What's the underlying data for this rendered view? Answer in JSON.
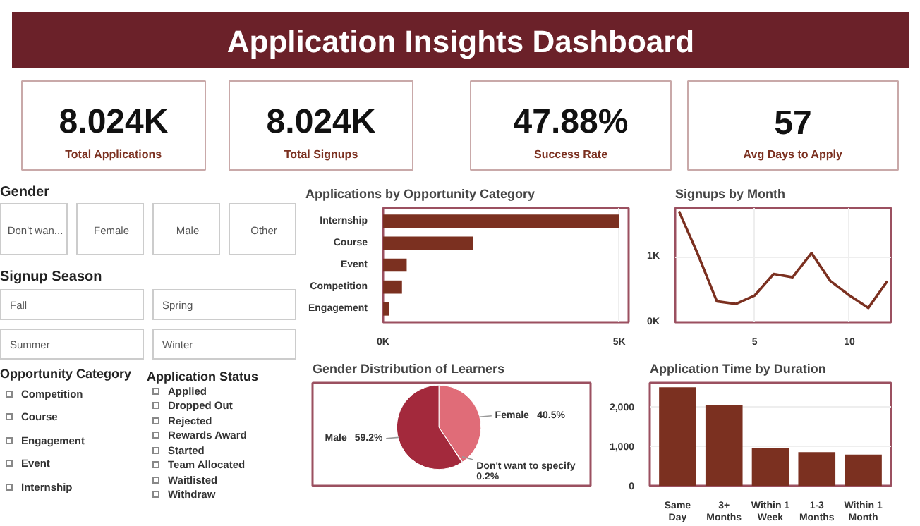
{
  "chart_data": [
    {
      "type": "other",
      "title": "Application Insights Dashboard",
      "annotations": [
        "8.024K",
        "Total Applications",
        "8.024K",
        "Total Signups",
        "47.88%",
        "Success Rate",
        "57",
        "Avg Days to Apply"
      ]
    },
    {
      "type": "other",
      "title": "Gender",
      "annotations": [
        "Don't wan...",
        "Female",
        "Male",
        "Other"
      ]
    },
    {
      "type": "other",
      "title": "Signup Season",
      "annotations": [
        "Fall",
        "Spring",
        "Summer",
        "Winter"
      ]
    },
    {
      "type": "other",
      "title": "Opportunity Category",
      "annotations": [
        "Competition",
        "Course",
        "Engagement",
        "Event",
        "Internship"
      ]
    },
    {
      "type": "other",
      "title": "Application Status",
      "annotations": [
        "Applied",
        "Dropped Out",
        "Rejected",
        "Rewards Award",
        "Started",
        "Team Allocated",
        "Waitlisted",
        "Withdraw"
      ]
    },
    {
      "type": "bar",
      "orientation": "horizontal",
      "title": "Applications by Opportunity Category",
      "categories": [
        "Internship",
        "Course",
        "Event",
        "Competition",
        "Engagement"
      ],
      "values": [
        5000,
        1900,
        500,
        400,
        130
      ],
      "color": "#7b3020",
      "xlim": [
        0,
        5200
      ],
      "xticks": [
        {
          "value": 0,
          "label": "0K"
        },
        {
          "value": 5000,
          "label": "5K"
        }
      ],
      "grid": "x"
    },
    {
      "type": "line",
      "title": "Signups by Month",
      "x": [
        1,
        2,
        3,
        4,
        5,
        6,
        7,
        8,
        9,
        10,
        11,
        12
      ],
      "values": [
        1700,
        1040,
        320,
        280,
        410,
        740,
        690,
        1060,
        630,
        410,
        220,
        630
      ],
      "color": "#7b3020",
      "xlim": [
        0.8,
        12.2
      ],
      "ylim": [
        0,
        1750
      ],
      "xticks": [
        5,
        10
      ],
      "yticks": [
        {
          "value": 0,
          "label": "0K"
        },
        {
          "value": 1000,
          "label": "1K"
        }
      ],
      "grid": true
    },
    {
      "type": "pie",
      "title": "Gender Distribution of Learners",
      "categories": [
        "Female",
        "Don't want to specify",
        "Male"
      ],
      "values": [
        40.5,
        0.2,
        59.2
      ],
      "value_labels": [
        "40.5%",
        "0.2%",
        "59.2%"
      ],
      "colors": [
        "#e06c78",
        "#7a1e2c",
        "#a3293c"
      ]
    },
    {
      "type": "bar",
      "title": "Application Time by Duration",
      "categories": [
        "Same Day",
        "3+ Months",
        "Within 1 Week",
        "1-3 Months",
        "Within 1 Month"
      ],
      "values": [
        2490,
        2030,
        950,
        850,
        790
      ],
      "color": "#7b3020",
      "ylim": [
        0,
        2600
      ],
      "yticks": [
        0,
        {
          "value": 1000,
          "label": "1,000"
        },
        {
          "value": 2000,
          "label": "2,000"
        }
      ],
      "grid": "y"
    }
  ]
}
